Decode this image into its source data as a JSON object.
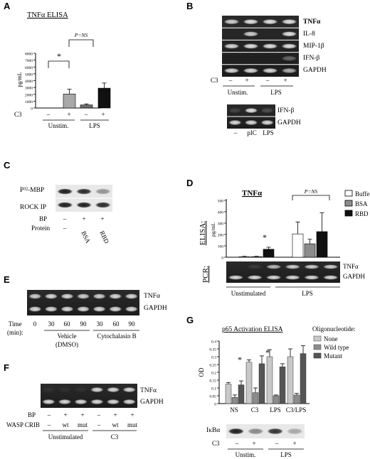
{
  "panels": {
    "A": {
      "letter": "A",
      "title": "TNFα ELISA",
      "ylabel": "pg/mL",
      "yticks": [
        "0",
        "1000",
        "2000",
        "3000",
        "4000",
        "5000",
        "6000",
        "7000",
        "8000"
      ],
      "star": "*",
      "ns": "P=NS",
      "c3_label": "C3",
      "c3_marks": [
        "–",
        "+",
        "–",
        "+"
      ],
      "groups": [
        "Unstim.",
        "LPS"
      ],
      "chart_data": {
        "type": "bar",
        "categories": [
          "Unstim. C3−",
          "Unstim. C3+",
          "LPS C3−",
          "LPS C3+"
        ],
        "values": [
          0,
          2050,
          450,
          2900
        ],
        "errors": [
          0,
          700,
          150,
          750
        ],
        "colors": [
          "#ffffff",
          "#a8a8a8",
          "#6b6b6b",
          "#111111"
        ],
        "ylim": [
          0,
          8000
        ],
        "title": "TNFα ELISA",
        "ylabel": "pg/mL"
      }
    },
    "B": {
      "letter": "B",
      "gel_labels": [
        "TNFα",
        "IL-8",
        "MIP-1β",
        "IFN-β",
        "GAPDH"
      ],
      "c3_label": "C3",
      "c3_marks": [
        "–",
        "+",
        "–",
        "+"
      ],
      "groups": [
        "Unstim.",
        "LPS"
      ],
      "gel2_labels": [
        "IFN-β",
        "GAPDH"
      ],
      "gel2_lanes": [
        "–",
        "pIC",
        "LPS"
      ]
    },
    "C": {
      "letter": "C",
      "gel_labels": [
        "P³²-MBP",
        "ROCK IP"
      ],
      "bp_label": "BP",
      "bp_marks": [
        "–",
        "+",
        "+"
      ],
      "protein_label": "Protein",
      "protein_names": [
        "BSA",
        "RBD"
      ]
    },
    "D": {
      "letter": "D",
      "title": "TNFα",
      "ylabel": "pg/mL",
      "elisa_label": "ELISA:",
      "pcr_label": "PCR:",
      "yticks": [
        "0",
        "100",
        "200",
        "300",
        "400",
        "500"
      ],
      "star": "*",
      "ns": "P=NS",
      "legend": [
        "Buffer",
        "BSA",
        "RBD"
      ],
      "gel_labels": [
        "TNFα",
        "GAPDH"
      ],
      "groups": [
        "Unstimulated",
        "LPS"
      ],
      "chart_data": {
        "type": "bar",
        "categories": [
          "Unstimulated",
          "LPS"
        ],
        "series": [
          {
            "name": "Buffer",
            "values": [
              5,
              205
            ],
            "errors": [
              3,
              105
            ],
            "color": "#ffffff"
          },
          {
            "name": "BSA",
            "values": [
              5,
              118
            ],
            "errors": [
              3,
              40
            ],
            "color": "#8c8c8c"
          },
          {
            "name": "RBD",
            "values": [
              70,
              225
            ],
            "errors": [
              18,
              165
            ],
            "color": "#111111"
          }
        ],
        "ylim": [
          0,
          500
        ],
        "title": "TNFα",
        "ylabel": "pg/mL"
      }
    },
    "E": {
      "letter": "E",
      "gel_labels": [
        "TNFα",
        "GAPDH"
      ],
      "time_label": "Time",
      "time_unit": "(min):",
      "times": [
        "0",
        "30",
        "60",
        "90",
        "30",
        "60",
        "90"
      ],
      "group1": "Vehicle",
      "group1b": "(DMSO)",
      "group2": "Cytochalasin B"
    },
    "F": {
      "letter": "F",
      "gel_labels": [
        "TNFα",
        "GAPDH"
      ],
      "bp_label": "BP",
      "bp_marks": [
        "–",
        "+",
        "+",
        "–",
        "+",
        "+"
      ],
      "crib_label": "WASP CRIB",
      "crib_marks": [
        "–",
        "wt",
        "mut",
        "–",
        "wt",
        "mut"
      ],
      "groups": [
        "Unstimulated",
        "C3"
      ]
    },
    "G": {
      "letter": "G",
      "title": "p65 Activation ELISA",
      "ylabel": "OD",
      "yticks": [
        "0",
        "0.05",
        "0.1",
        "0.15",
        "0.2",
        "0.25",
        "0.3",
        "0.35",
        "0.4"
      ],
      "star": "*",
      "legend_title": "Oligonucleotide:",
      "legend": [
        "None",
        "Wild type",
        "Mutant"
      ],
      "ikb_label": "IκBα",
      "c3_label": "C3",
      "c3_marks": [
        "–",
        "+",
        "–",
        "+"
      ],
      "groups": [
        "Unstim.",
        "LPS"
      ],
      "chart_data": {
        "type": "bar",
        "categories": [
          "NS",
          "C3",
          "LPS",
          "C3/LPS"
        ],
        "series": [
          {
            "name": "None",
            "values": [
              0.125,
              0.265,
              0.3,
              0.3
            ],
            "errors": [
              0.01,
              0.015,
              0.045,
              0.05
            ],
            "color": "#c8c8c8"
          },
          {
            "name": "Wild type",
            "values": [
              0.04,
              0.07,
              0.05,
              0.055
            ],
            "errors": [
              0.015,
              0.03,
              0.005,
              0.01
            ],
            "color": "#8c8c8c"
          },
          {
            "name": "Mutant",
            "values": [
              0.12,
              0.255,
              0.235,
              0.32
            ],
            "errors": [
              0.025,
              0.05,
              0.02,
              0.05
            ],
            "color": "#555555"
          }
        ],
        "ylim": [
          0,
          0.4
        ],
        "title": "p65 Activation ELISA",
        "ylabel": "OD"
      }
    }
  }
}
